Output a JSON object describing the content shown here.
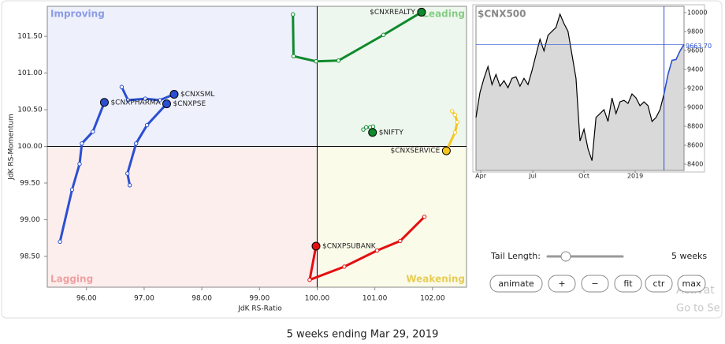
{
  "chart_data": [
    {
      "type": "rrg",
      "xlabel": "JdK RS-Ratio",
      "ylabel": "JdK RS-Momentum",
      "xlim": [
        95.32,
        102.59
      ],
      "ylim": [
        98.08,
        101.91
      ],
      "center": [
        100,
        100
      ],
      "xticks": [
        {
          "value": 96,
          "label": "96.00"
        },
        {
          "value": 97,
          "label": "97.00"
        },
        {
          "value": 98,
          "label": "98.00"
        },
        {
          "value": 99,
          "label": "99.00"
        },
        {
          "value": 100,
          "label": "100.00"
        },
        {
          "value": 101,
          "label": "101.00"
        },
        {
          "value": 102,
          "label": "102.00"
        }
      ],
      "yticks": [
        {
          "value": 98.5,
          "label": "98.50"
        },
        {
          "value": 99,
          "label": "99.00"
        },
        {
          "value": 99.5,
          "label": "99.50"
        },
        {
          "value": 100,
          "label": "100.00"
        },
        {
          "value": 100.5,
          "label": "100.50"
        },
        {
          "value": 101,
          "label": "101.00"
        },
        {
          "value": 101.5,
          "label": "101.50"
        }
      ],
      "quadrants": [
        {
          "name": "Improving",
          "color": "#eef0fb",
          "label_color": "#8a9ce6"
        },
        {
          "name": "Leading",
          "color": "#eef7ee",
          "label_color": "#86cc86"
        },
        {
          "name": "Lagging",
          "color": "#fdeeee",
          "label_color": "#f0a0a0"
        },
        {
          "name": "Weakening",
          "color": "#fbfbea",
          "label_color": "#e6cc55"
        }
      ],
      "series": [
        {
          "name": "$CNXREALTY",
          "color": "#0e8a2c",
          "x": [
            99.58,
            99.59,
            99.98,
            100.37,
            101.15,
            101.81
          ],
          "y": [
            101.8,
            101.23,
            101.16,
            101.17,
            101.52,
            101.83
          ]
        },
        {
          "name": "$NIFTY",
          "color": "#0e8a2c",
          "x": [
            100.8,
            100.85,
            100.92,
            100.97,
            100.96
          ],
          "y": [
            100.23,
            100.26,
            100.26,
            100.27,
            100.19
          ]
        },
        {
          "name": "$CNXSERVICE",
          "color": "#f7c51e",
          "x": [
            102.34,
            102.39,
            102.43,
            102.39,
            102.24
          ],
          "y": [
            100.48,
            100.43,
            100.33,
            100.19,
            99.94
          ]
        },
        {
          "name": "$CNXPSUBANK",
          "color": "#e31010",
          "x": [
            101.86,
            101.44,
            101.04,
            100.47,
            99.87,
            99.98
          ],
          "y": [
            99.04,
            98.71,
            98.58,
            98.36,
            98.18,
            98.64
          ]
        },
        {
          "name": "$CNXSML",
          "color": "#2b4fd2",
          "x": [
            96.61,
            96.72,
            97.02,
            97.27,
            97.52
          ],
          "y": [
            100.81,
            100.63,
            100.65,
            100.63,
            100.71
          ]
        },
        {
          "name": "$CNXPSE",
          "color": "#2b4fd2",
          "x": [
            96.75,
            96.71,
            96.86,
            97.05,
            97.39
          ],
          "y": [
            99.47,
            99.63,
            100.04,
            100.29,
            100.58
          ]
        },
        {
          "name": "$CNXPHARMA",
          "color": "#2b4fd2",
          "x": [
            95.54,
            95.75,
            95.88,
            95.92,
            96.11,
            96.31
          ],
          "y": [
            98.7,
            99.41,
            99.76,
            100.04,
            100.2,
            100.6
          ]
        }
      ]
    },
    {
      "type": "area",
      "title": "$CNX500",
      "xlim": [
        0,
        52
      ],
      "ylim": [
        8334,
        10066
      ],
      "yticks": [
        8400,
        8600,
        8800,
        9000,
        9200,
        9400,
        9600,
        9800,
        10000
      ],
      "xticks": [
        {
          "value": 1.2,
          "label": "Apr"
        },
        {
          "value": 14.2,
          "label": "Jul"
        },
        {
          "value": 27,
          "label": "Oct"
        },
        {
          "value": 39.8,
          "label": "2019"
        }
      ],
      "marker_x": 47,
      "color": "#000000",
      "highlight_color": "#2b4fd2",
      "fill": "#d9d9d9",
      "current": {
        "value": 9663.7,
        "label": "9663.70"
      },
      "values": [
        8893,
        9157,
        9306,
        9430,
        9240,
        9347,
        9223,
        9281,
        9207,
        9306,
        9322,
        9223,
        9306,
        9240,
        9388,
        9554,
        9719,
        9595,
        9760,
        9802,
        9843,
        9983,
        9884,
        9802,
        9554,
        9306,
        8645,
        8769,
        8562,
        8438,
        8893,
        8934,
        8975,
        8851,
        9099,
        8934,
        9058,
        9074,
        9041,
        9141,
        9099,
        9017,
        9058,
        9017,
        8851,
        8893,
        8975,
        9141,
        9347,
        9496,
        9504,
        9595,
        9663.7
      ]
    }
  ],
  "controls": {
    "tail_label": "Tail Length:",
    "tail_value": "5 weeks",
    "buttons": [
      "animate",
      "+",
      "−",
      "fit",
      "ctr",
      "max"
    ]
  },
  "watermark": [
    "Activat",
    "Go to Se"
  ],
  "footer": "5 weeks ending Mar 29, 2019"
}
